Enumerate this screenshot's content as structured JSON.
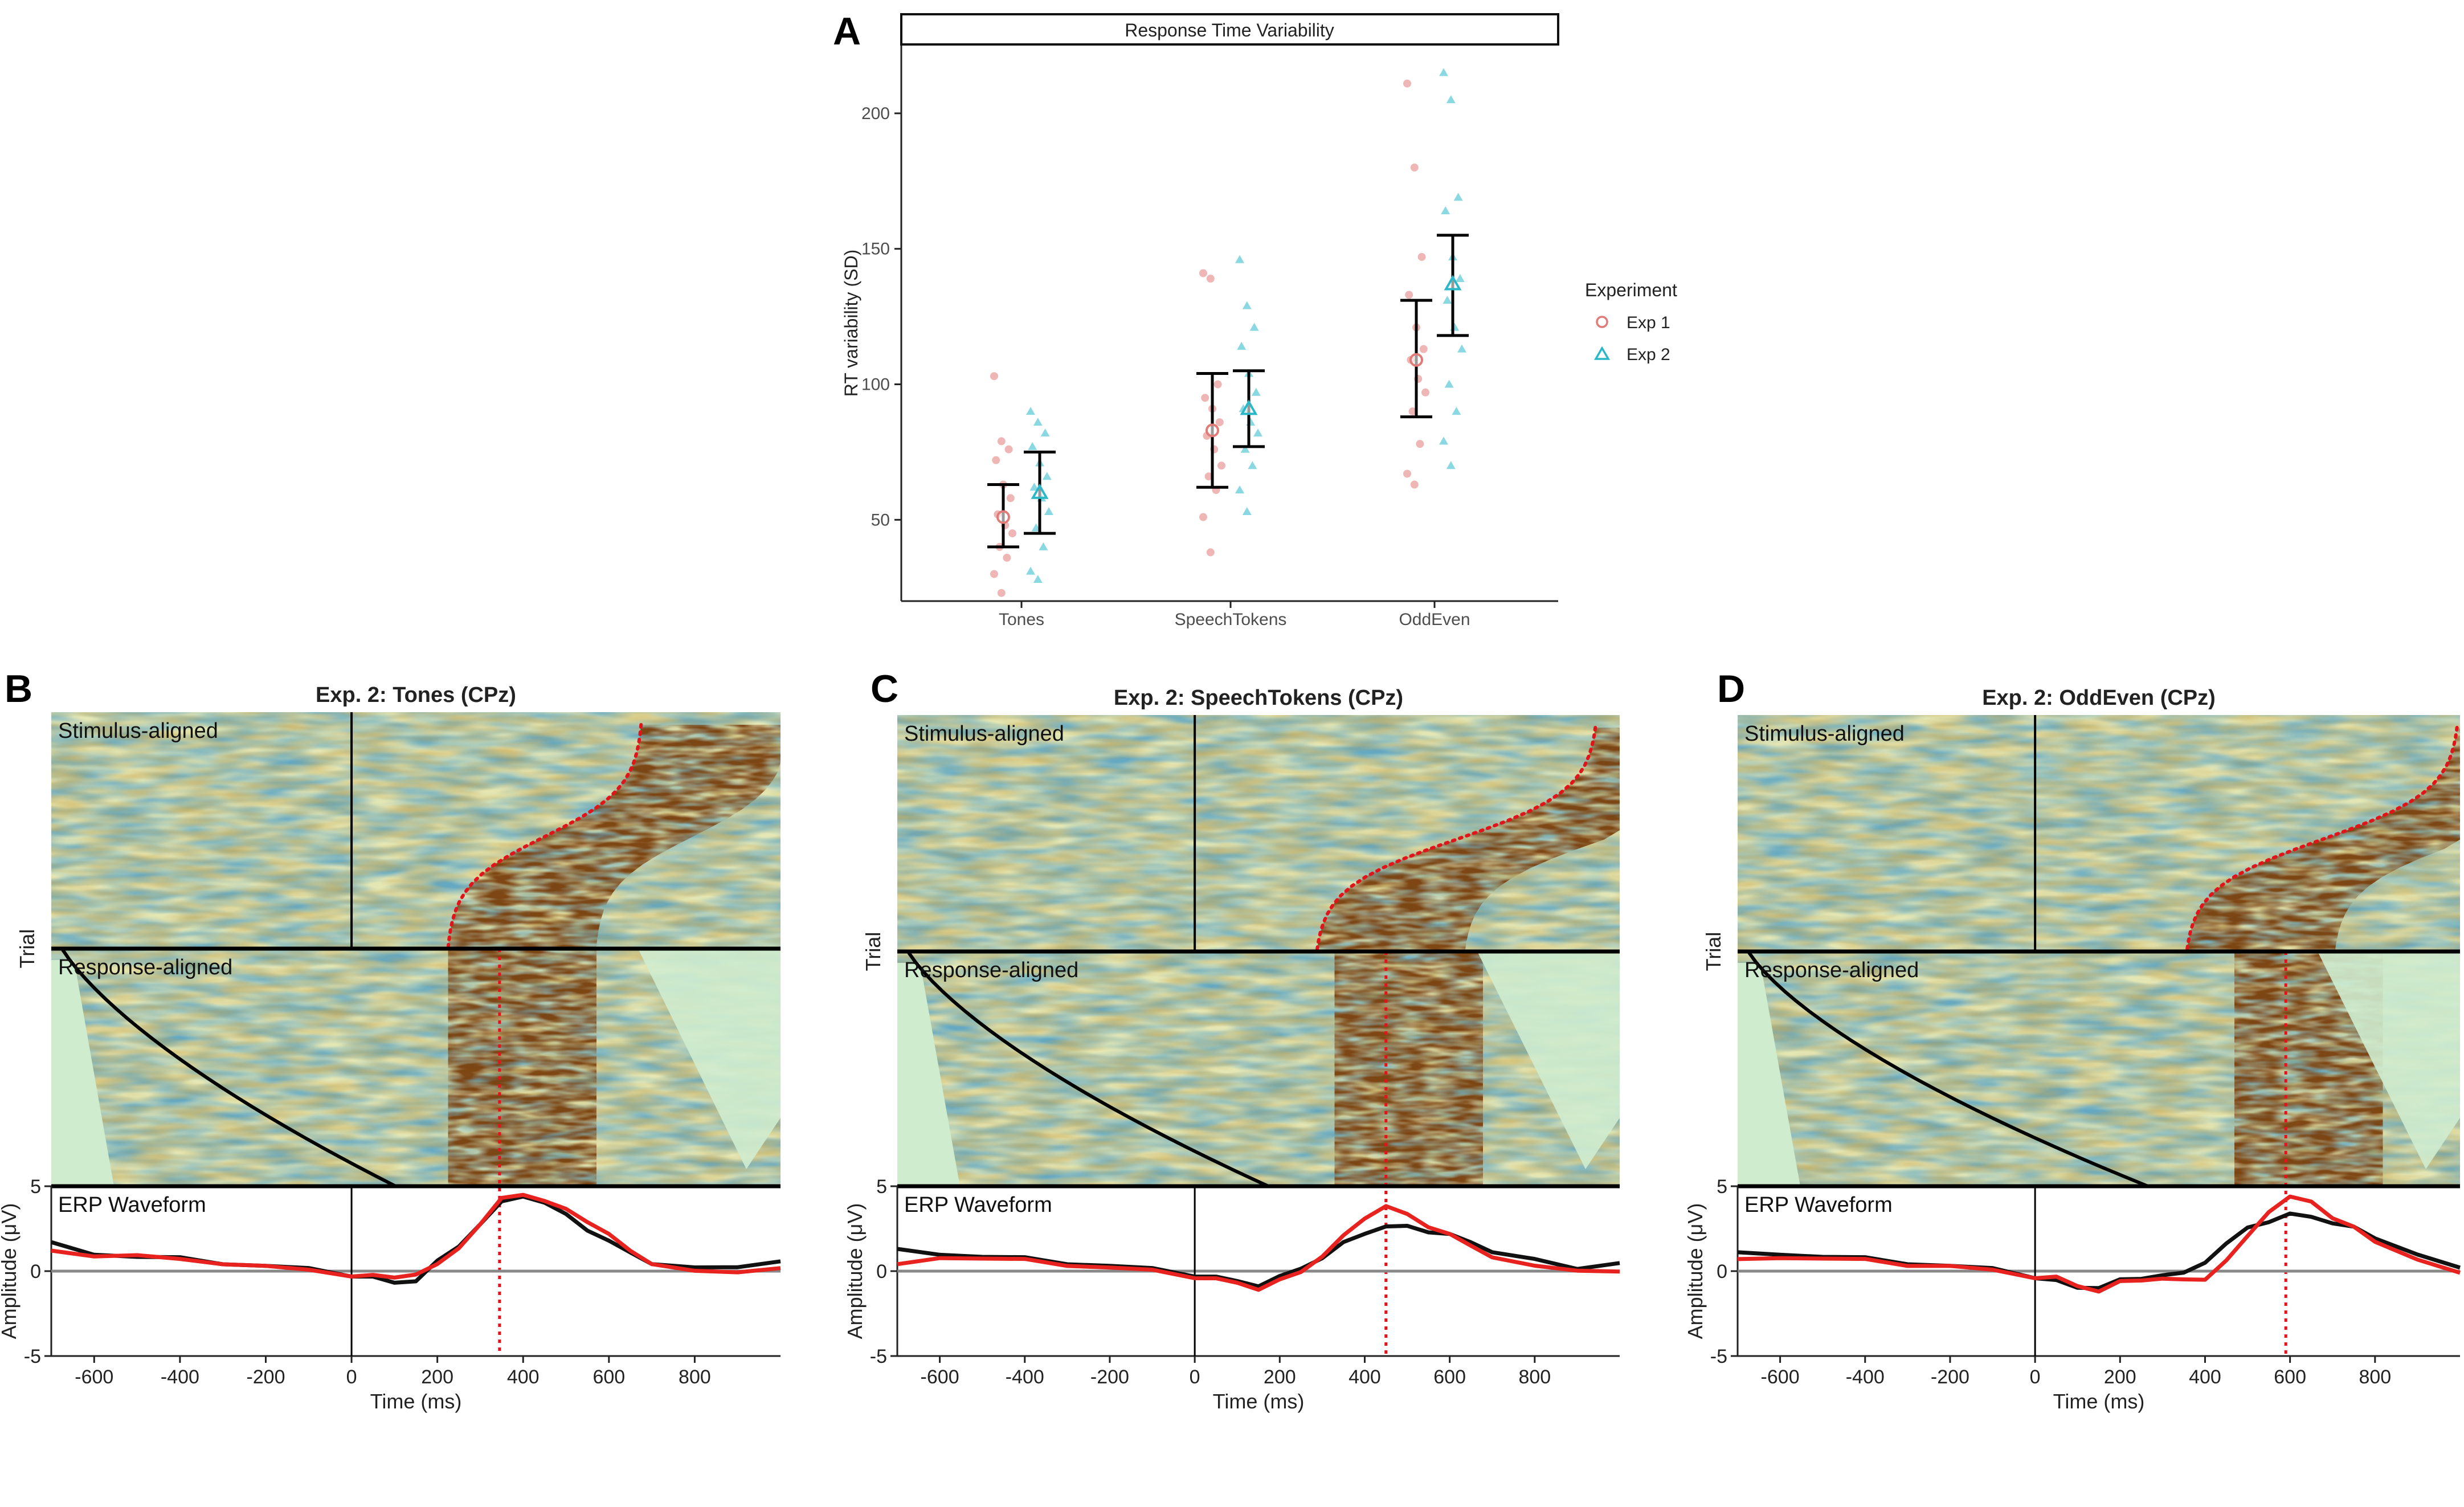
{
  "figure_labels": {
    "a": "A",
    "b": "B",
    "c": "C",
    "d": "D"
  },
  "colors": {
    "exp1": "#e07b78",
    "exp2": "#2ab8c8",
    "erp_black": "#111111",
    "erp_red": "#e8231f",
    "rt_dotted": "#e0141b",
    "heat_bg": "#cfeccf"
  },
  "chart_data": [
    {
      "type": "scatter",
      "title": "Response Time Variability",
      "xlabel": "",
      "ylabel": "RT variability (SD)",
      "categories": [
        "Tones",
        "SpeechTokens",
        "OddEven"
      ],
      "yticks": [
        50,
        100,
        150,
        200
      ],
      "ylim": [
        20,
        225
      ],
      "legend": {
        "title": "Experiment",
        "placement": "right",
        "entries": [
          "Exp 1",
          "Exp 2"
        ]
      },
      "series": [
        {
          "name": "Exp 1",
          "marker": "circle",
          "means": [
            51,
            83,
            109
          ],
          "ci_low": [
            40,
            62,
            88
          ],
          "ci_high": [
            63,
            104,
            131
          ],
          "points": [
            [
              103,
              79,
              76,
              72,
              63,
              58,
              52,
              48,
              45,
              40,
              36,
              30,
              23
            ],
            [
              141,
              139,
              100,
              95,
              91,
              86,
              81,
              76,
              70,
              66,
              61,
              51,
              38
            ],
            [
              211,
              180,
              147,
              133,
              121,
              113,
              109,
              102,
              97,
              90,
              78,
              67,
              63
            ]
          ]
        },
        {
          "name": "Exp 2",
          "marker": "triangle",
          "means": [
            60,
            91,
            137
          ],
          "ci_low": [
            45,
            77,
            118
          ],
          "ci_high": [
            75,
            105,
            155
          ],
          "points": [
            [
              90,
              86,
              82,
              77,
              71,
              66,
              62,
              58,
              53,
              47,
              40,
              31,
              28
            ],
            [
              146,
              129,
              121,
              114,
              104,
              97,
              91,
              86,
              82,
              76,
              70,
              61,
              53
            ],
            [
              215,
              205,
              169,
              164,
              147,
              139,
              131,
              121,
              113,
              100,
              90,
              79,
              70
            ]
          ]
        }
      ]
    },
    {
      "type": "heatmap",
      "title": "Exp. 2: Tones (CPz)",
      "top_label": "Stimulus-aligned",
      "bottom_label": "Response-aligned",
      "ylabel": "Trial",
      "xlim": [
        -700,
        1000
      ],
      "mean_rt_ms": 345,
      "rt_range_ms": [
        220,
        680
      ],
      "erp": {
        "title": "ERP Waveform",
        "xlabel": "Time (ms)",
        "ylabel": "Amplitude (μV)",
        "xticks": [
          -600,
          -400,
          -200,
          0,
          200,
          400,
          600,
          800
        ],
        "yticks": [
          5,
          0,
          -5
        ],
        "ylim": [
          -5,
          5
        ],
        "time_ms": [
          -700,
          -600,
          -500,
          -400,
          -300,
          -200,
          -100,
          0,
          50,
          100,
          150,
          200,
          250,
          300,
          350,
          400,
          450,
          500,
          550,
          600,
          650,
          700,
          800,
          900,
          1000
        ],
        "black": [
          1.6,
          1.0,
          0.9,
          0.7,
          0.5,
          0.3,
          0.1,
          -0.2,
          -0.4,
          -0.7,
          -0.5,
          0.5,
          1.5,
          2.8,
          4.0,
          4.5,
          4.0,
          3.3,
          2.5,
          1.7,
          1.1,
          0.5,
          0.1,
          0.3,
          0.6
        ],
        "red": [
          1.1,
          0.9,
          1.0,
          0.6,
          0.5,
          0.3,
          0.0,
          -0.2,
          -0.3,
          -0.4,
          -0.1,
          0.3,
          1.4,
          2.8,
          4.2,
          4.6,
          4.1,
          3.6,
          3.0,
          2.1,
          1.2,
          0.5,
          -0.1,
          0.0,
          0.2
        ]
      }
    },
    {
      "type": "heatmap",
      "title": "Exp. 2: SpeechTokens (CPz)",
      "top_label": "Stimulus-aligned",
      "bottom_label": "Response-aligned",
      "ylabel": "Trial",
      "xlim": [
        -700,
        1000
      ],
      "mean_rt_ms": 450,
      "rt_range_ms": [
        280,
        950
      ],
      "erp": {
        "title": "ERP Waveform",
        "xlabel": "Time (ms)",
        "ylabel": "Amplitude (μV)",
        "xticks": [
          -600,
          -400,
          -200,
          0,
          200,
          400,
          600,
          800
        ],
        "yticks": [
          5,
          0,
          -5
        ],
        "ylim": [
          -5,
          5
        ],
        "time_ms": [
          -700,
          -600,
          -500,
          -400,
          -300,
          -200,
          -100,
          0,
          50,
          100,
          150,
          200,
          250,
          300,
          350,
          400,
          450,
          500,
          550,
          600,
          650,
          700,
          800,
          900,
          1000
        ],
        "black": [
          1.2,
          1.0,
          0.9,
          0.7,
          0.5,
          0.3,
          0.1,
          -0.2,
          -0.4,
          -0.6,
          -0.8,
          -0.4,
          0.2,
          0.8,
          1.6,
          2.3,
          2.6,
          2.6,
          2.4,
          2.1,
          1.7,
          1.2,
          0.6,
          0.2,
          0.5
        ],
        "red": [
          0.3,
          0.8,
          0.8,
          0.6,
          0.4,
          0.2,
          0.0,
          -0.3,
          -0.5,
          -0.7,
          -1.0,
          -0.6,
          0.0,
          0.9,
          2.0,
          3.2,
          3.8,
          3.3,
          2.7,
          2.1,
          1.5,
          0.9,
          0.2,
          0.1,
          0.0
        ]
      }
    },
    {
      "type": "heatmap",
      "title": "Exp. 2: OddEven (CPz)",
      "top_label": "Stimulus-aligned",
      "bottom_label": "Response-aligned",
      "ylabel": "Trial",
      "xlim": [
        -700,
        1000
      ],
      "mean_rt_ms": 590,
      "rt_range_ms": [
        350,
        1000
      ],
      "erp": {
        "title": "ERP Waveform",
        "xlabel": "Time (ms)",
        "ylabel": "Amplitude (μV)",
        "xticks": [
          -600,
          -400,
          -200,
          0,
          200,
          400,
          600,
          800
        ],
        "yticks": [
          5,
          0,
          -5
        ],
        "ylim": [
          -5,
          5
        ],
        "time_ms": [
          -700,
          -600,
          -500,
          -400,
          -300,
          -200,
          -100,
          0,
          50,
          100,
          150,
          200,
          250,
          300,
          350,
          400,
          450,
          500,
          550,
          600,
          650,
          700,
          750,
          800,
          900,
          1000
        ],
        "black": [
          1.0,
          1.0,
          0.9,
          0.7,
          0.5,
          0.3,
          0.1,
          -0.3,
          -0.6,
          -1.0,
          -0.9,
          -0.6,
          -0.4,
          -0.2,
          -0.2,
          0.6,
          1.6,
          2.5,
          3.0,
          3.3,
          3.2,
          2.9,
          2.5,
          2.0,
          1.0,
          0.1
        ],
        "red": [
          0.6,
          0.8,
          0.8,
          0.6,
          0.4,
          0.3,
          0.0,
          -0.3,
          -0.4,
          -0.9,
          -1.1,
          -0.7,
          -0.5,
          -0.4,
          -0.6,
          -0.4,
          0.6,
          2.0,
          3.6,
          4.3,
          4.1,
          3.2,
          2.5,
          1.8,
          0.7,
          -0.2
        ]
      }
    }
  ]
}
